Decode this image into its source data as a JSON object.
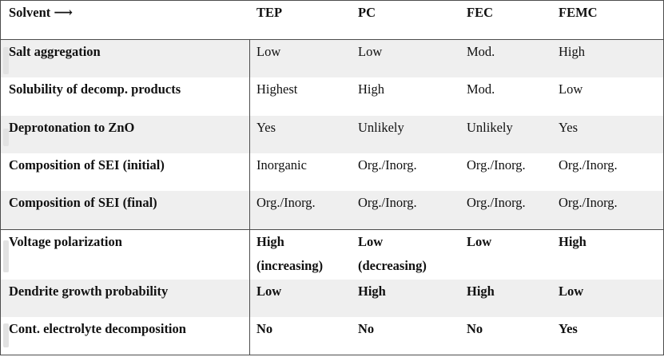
{
  "header": {
    "col0": "Solvent ⟶",
    "col1": "TEP",
    "col2": "PC",
    "col3": "FEC",
    "col4": "FEMC"
  },
  "rows": [
    {
      "label": "Salt aggregation",
      "values": [
        "Low",
        "Low",
        "Mod.",
        "High"
      ]
    },
    {
      "label": "Solubility of decomp. products",
      "values": [
        "Highest",
        "High",
        "Mod.",
        "Low"
      ]
    },
    {
      "label": "Deprotonation to ZnO",
      "values": [
        "Yes",
        "Unlikely",
        "Unlikely",
        "Yes"
      ]
    },
    {
      "label": "Composition of SEI (initial)",
      "values": [
        "Inorganic",
        "Org./Inorg.",
        "Org./Inorg.",
        "Org./Inorg."
      ]
    },
    {
      "label": "Composition of SEI (final)",
      "values": [
        "Org./Inorg.",
        "Org./Inorg.",
        "Org./Inorg.",
        "Org./Inorg."
      ]
    },
    {
      "label": "Voltage polarization",
      "values": [
        "High",
        "Low",
        "Low",
        "High"
      ],
      "subvalues": [
        "(increasing)",
        "(decreasing)",
        "",
        ""
      ]
    },
    {
      "label": "Dendrite growth probability",
      "values": [
        "Low",
        "High",
        "High",
        "Low"
      ]
    },
    {
      "label": "Cont. electrolyte decomposition",
      "values": [
        "No",
        "No",
        "No",
        "Yes"
      ]
    }
  ]
}
